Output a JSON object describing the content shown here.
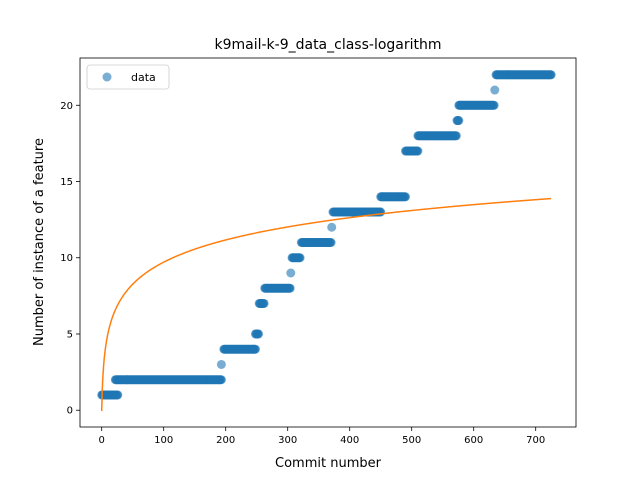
{
  "chart_data": {
    "type": "scatter",
    "title": "k9mail-k-9_data_class-logarithm",
    "xlabel": "Commit number",
    "ylabel": "Number of instance of a feature",
    "xlim": [
      -35,
      765
    ],
    "ylim": [
      -1.1,
      23.1
    ],
    "xticks": [
      0,
      100,
      200,
      300,
      400,
      500,
      600,
      700
    ],
    "yticks": [
      0,
      5,
      10,
      15,
      20
    ],
    "grid": false,
    "legend": {
      "placement": "top-left",
      "entries": [
        "data"
      ]
    },
    "colors": {
      "data": "#1f77b4",
      "fit": "#ff7f0e"
    },
    "series": [
      {
        "name": "data",
        "kind": "scatter",
        "segments": [
          {
            "x_start": 0,
            "x_end": 26,
            "y": 1
          },
          {
            "x_start": 22,
            "x_end": 193,
            "y": 2
          },
          {
            "x_start": 193,
            "x_end": 193,
            "y": 3
          },
          {
            "x_start": 197,
            "x_end": 248,
            "y": 4
          },
          {
            "x_start": 248,
            "x_end": 253,
            "y": 5
          },
          {
            "x_start": 254,
            "x_end": 262,
            "y": 7
          },
          {
            "x_start": 263,
            "x_end": 304,
            "y": 8
          },
          {
            "x_start": 305,
            "x_end": 305,
            "y": 9
          },
          {
            "x_start": 307,
            "x_end": 320,
            "y": 10
          },
          {
            "x_start": 322,
            "x_end": 370,
            "y": 11
          },
          {
            "x_start": 371,
            "x_end": 371,
            "y": 12
          },
          {
            "x_start": 373,
            "x_end": 450,
            "y": 13
          },
          {
            "x_start": 450,
            "x_end": 490,
            "y": 14
          },
          {
            "x_start": 490,
            "x_end": 510,
            "y": 17
          },
          {
            "x_start": 510,
            "x_end": 572,
            "y": 18
          },
          {
            "x_start": 573,
            "x_end": 576,
            "y": 19
          },
          {
            "x_start": 576,
            "x_end": 633,
            "y": 20
          },
          {
            "x_start": 634,
            "x_end": 634,
            "y": 21
          },
          {
            "x_start": 636,
            "x_end": 725,
            "y": 22
          }
        ]
      },
      {
        "kind": "line",
        "model": "y = a + b*ln(x+1)",
        "params": {
          "a": -0.05,
          "b": 2.115
        },
        "x_range": [
          0,
          725
        ]
      }
    ]
  }
}
